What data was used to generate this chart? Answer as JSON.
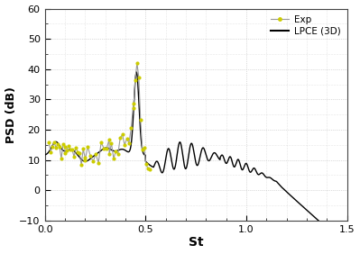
{
  "title": "",
  "xlabel": "St",
  "ylabel": "PSD (dB)",
  "xlim": [
    0,
    1.5
  ],
  "ylim": [
    -10,
    60
  ],
  "xticks": [
    0,
    0.5,
    1.0,
    1.5
  ],
  "yticks": [
    -10,
    0,
    10,
    20,
    30,
    40,
    50,
    60
  ],
  "legend_entries": [
    "Exp",
    "LPCE (3D)"
  ],
  "exp_marker_color": "#cccc00",
  "exp_line_color": "#999999",
  "lpce_color": "#000000",
  "grid_color": "#bbbbbb",
  "background_color": "#ffffff"
}
